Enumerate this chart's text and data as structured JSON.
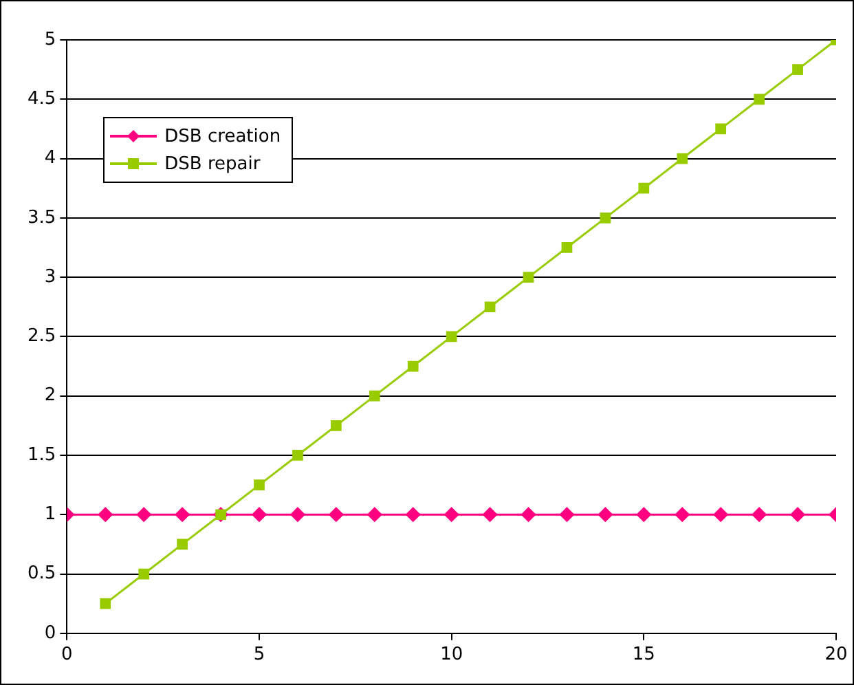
{
  "chart_data": {
    "type": "line",
    "xlim": [
      0,
      20
    ],
    "xticks": [
      0,
      5,
      10,
      15,
      20
    ],
    "ylim": [
      0,
      5
    ],
    "yticks": [
      0,
      0.5,
      1,
      1.5,
      2,
      2.5,
      3,
      3.5,
      4,
      4.5,
      5
    ],
    "grid": "y",
    "legend": "top left",
    "series": [
      {
        "name": "DSB creation",
        "color": "#ff0080",
        "marker": "diamond",
        "x": [
          0,
          1,
          2,
          3,
          4,
          5,
          6,
          7,
          8,
          9,
          10,
          11,
          12,
          13,
          14,
          15,
          16,
          17,
          18,
          19,
          20
        ],
        "values": [
          1,
          1,
          1,
          1,
          1,
          1,
          1,
          1,
          1,
          1,
          1,
          1,
          1,
          1,
          1,
          1,
          1,
          1,
          1,
          1,
          1
        ]
      },
      {
        "name": "DSB repair",
        "color": "#99cc00",
        "marker": "square",
        "x": [
          1,
          2,
          3,
          4,
          5,
          6,
          7,
          8,
          9,
          10,
          11,
          12,
          13,
          14,
          15,
          16,
          17,
          18,
          19,
          20
        ],
        "values": [
          0.25,
          0.5,
          0.75,
          1,
          1.25,
          1.5,
          1.75,
          2,
          2.25,
          2.5,
          2.75,
          3,
          3.25,
          3.5,
          3.75,
          4,
          4.25,
          4.5,
          4.75,
          5
        ]
      }
    ]
  }
}
